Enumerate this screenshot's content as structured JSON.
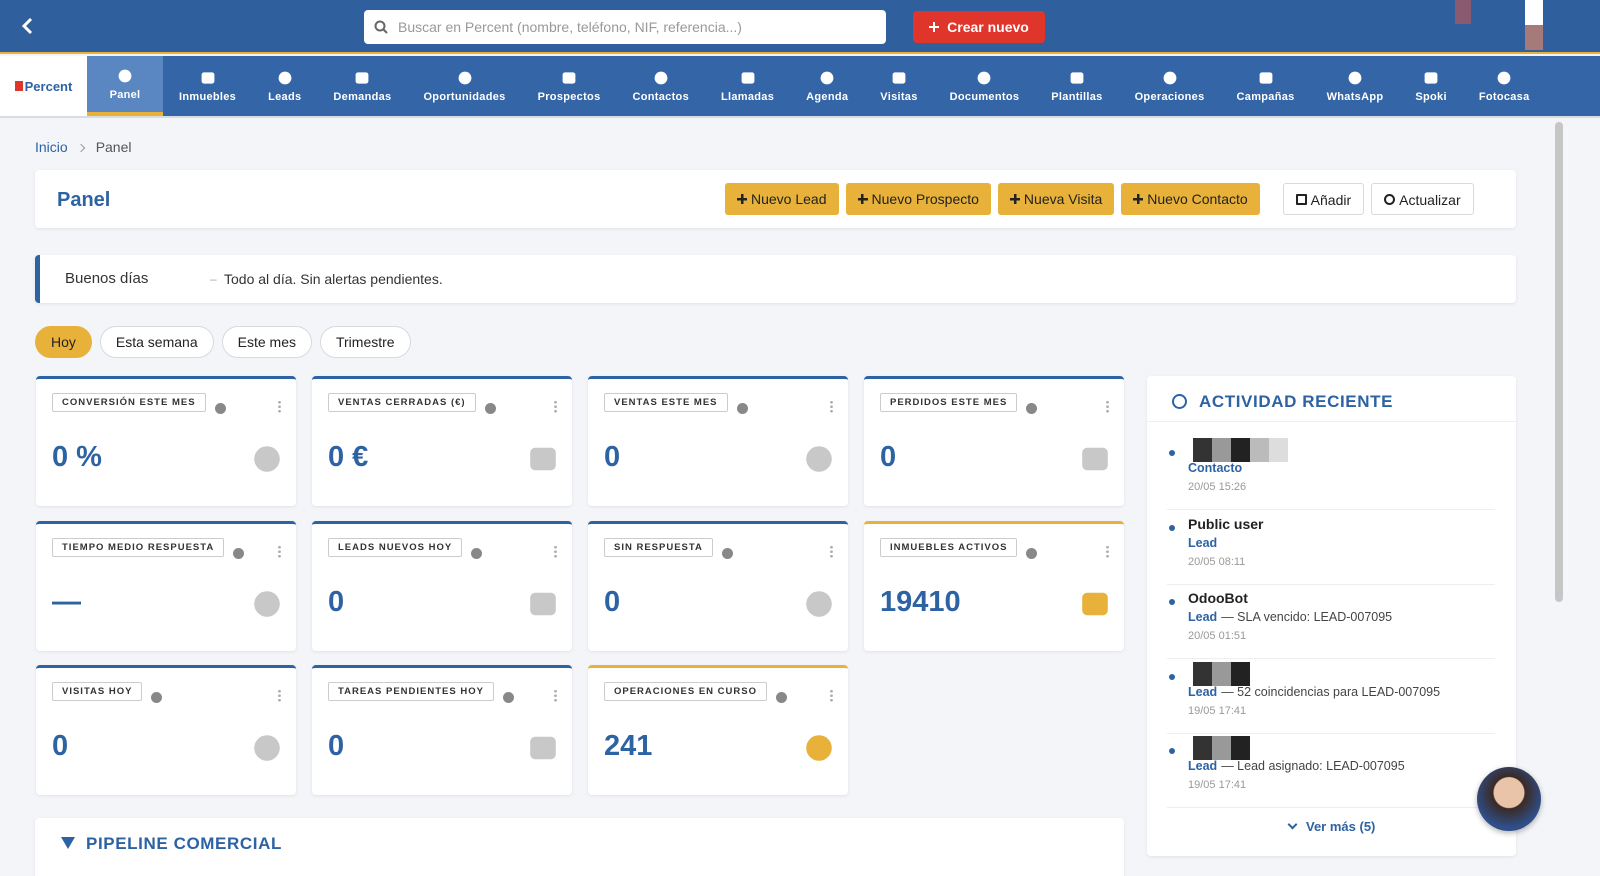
{
  "topbar": {
    "search_placeholder": "Buscar en Percent (nombre, teléfono, NIF, referencia...)",
    "create_button": "Crear nuevo"
  },
  "brand": "Percent",
  "nav": {
    "active": 0,
    "items": [
      "Panel",
      "Inmuebles",
      "Leads",
      "Demandas",
      "Oportunidades",
      "Prospectos",
      "Contactos",
      "Llamadas",
      "Agenda",
      "Visitas",
      "Documentos",
      "Plantillas",
      "Operaciones",
      "Campañas",
      "WhatsApp",
      "Spoki",
      "Fotocasa"
    ]
  },
  "breadcrumb": [
    "Inicio",
    "Panel"
  ],
  "header": {
    "title": "Panel",
    "actions": [
      "Nuevo Lead",
      "Nuevo Prospecto",
      "Nueva Visita",
      "Nuevo Contacto"
    ],
    "tools": [
      "Añadir",
      "Actualizar"
    ]
  },
  "alert": {
    "greeting": "Buenos días",
    "separator": "–",
    "message": "Todo al día. Sin alertas pendientes."
  },
  "periods": {
    "active": 0,
    "items": [
      "Hoy",
      "Esta semana",
      "Este mes",
      "Trimestre"
    ]
  },
  "kpis": [
    {
      "label": "CONVERSIÓN ESTE MES",
      "value": "0 %",
      "accent": "#2d62a3"
    },
    {
      "label": "VENTAS CERRADAS (€)",
      "value": "0 €",
      "accent": "#2d62a3"
    },
    {
      "label": "VENTAS ESTE MES",
      "value": "0",
      "accent": "#2d62a3"
    },
    {
      "label": "PERDIDOS ESTE MES",
      "value": "0",
      "accent": "#2d62a3"
    },
    {
      "label": "TIEMPO MEDIO RESPUESTA",
      "value": "—",
      "accent": "#2d62a3"
    },
    {
      "label": "LEADS NUEVOS HOY",
      "value": "0",
      "accent": "#2d62a3"
    },
    {
      "label": "SIN RESPUESTA",
      "value": "0",
      "accent": "#2d62a3"
    },
    {
      "label": "INMUEBLES ACTIVOS",
      "value": "19410",
      "accent": "#e8b23a"
    },
    {
      "label": "VISITAS HOY",
      "value": "0",
      "accent": "#2d62a3"
    },
    {
      "label": "TAREAS PENDIENTES HOY",
      "value": "0",
      "accent": "#2d62a3"
    },
    {
      "label": "OPERACIONES EN CURSO",
      "value": "241",
      "accent": "#e8b23a"
    }
  ],
  "activity": {
    "title": "ACTIVIDAD RECIENTE",
    "items": [
      {
        "type": "Contacto",
        "time": "20/05 15:26"
      },
      {
        "user": "Public user",
        "type": "Lead",
        "time": "20/05 08:11"
      },
      {
        "user": "OdooBot",
        "type": "Lead",
        "detail": "— SLA vencido: LEAD-007095",
        "time": "20/05 01:51"
      },
      {
        "type": "Lead",
        "detail": "— 52 coincidencias para LEAD-007095",
        "time": "19/05 17:41"
      },
      {
        "type": "Lead",
        "detail": "— Lead asignado: LEAD-007095",
        "time": "19/05 17:41"
      }
    ],
    "more": "Ver más (5)"
  },
  "pipeline": {
    "title": "PIPELINE COMERCIAL"
  }
}
